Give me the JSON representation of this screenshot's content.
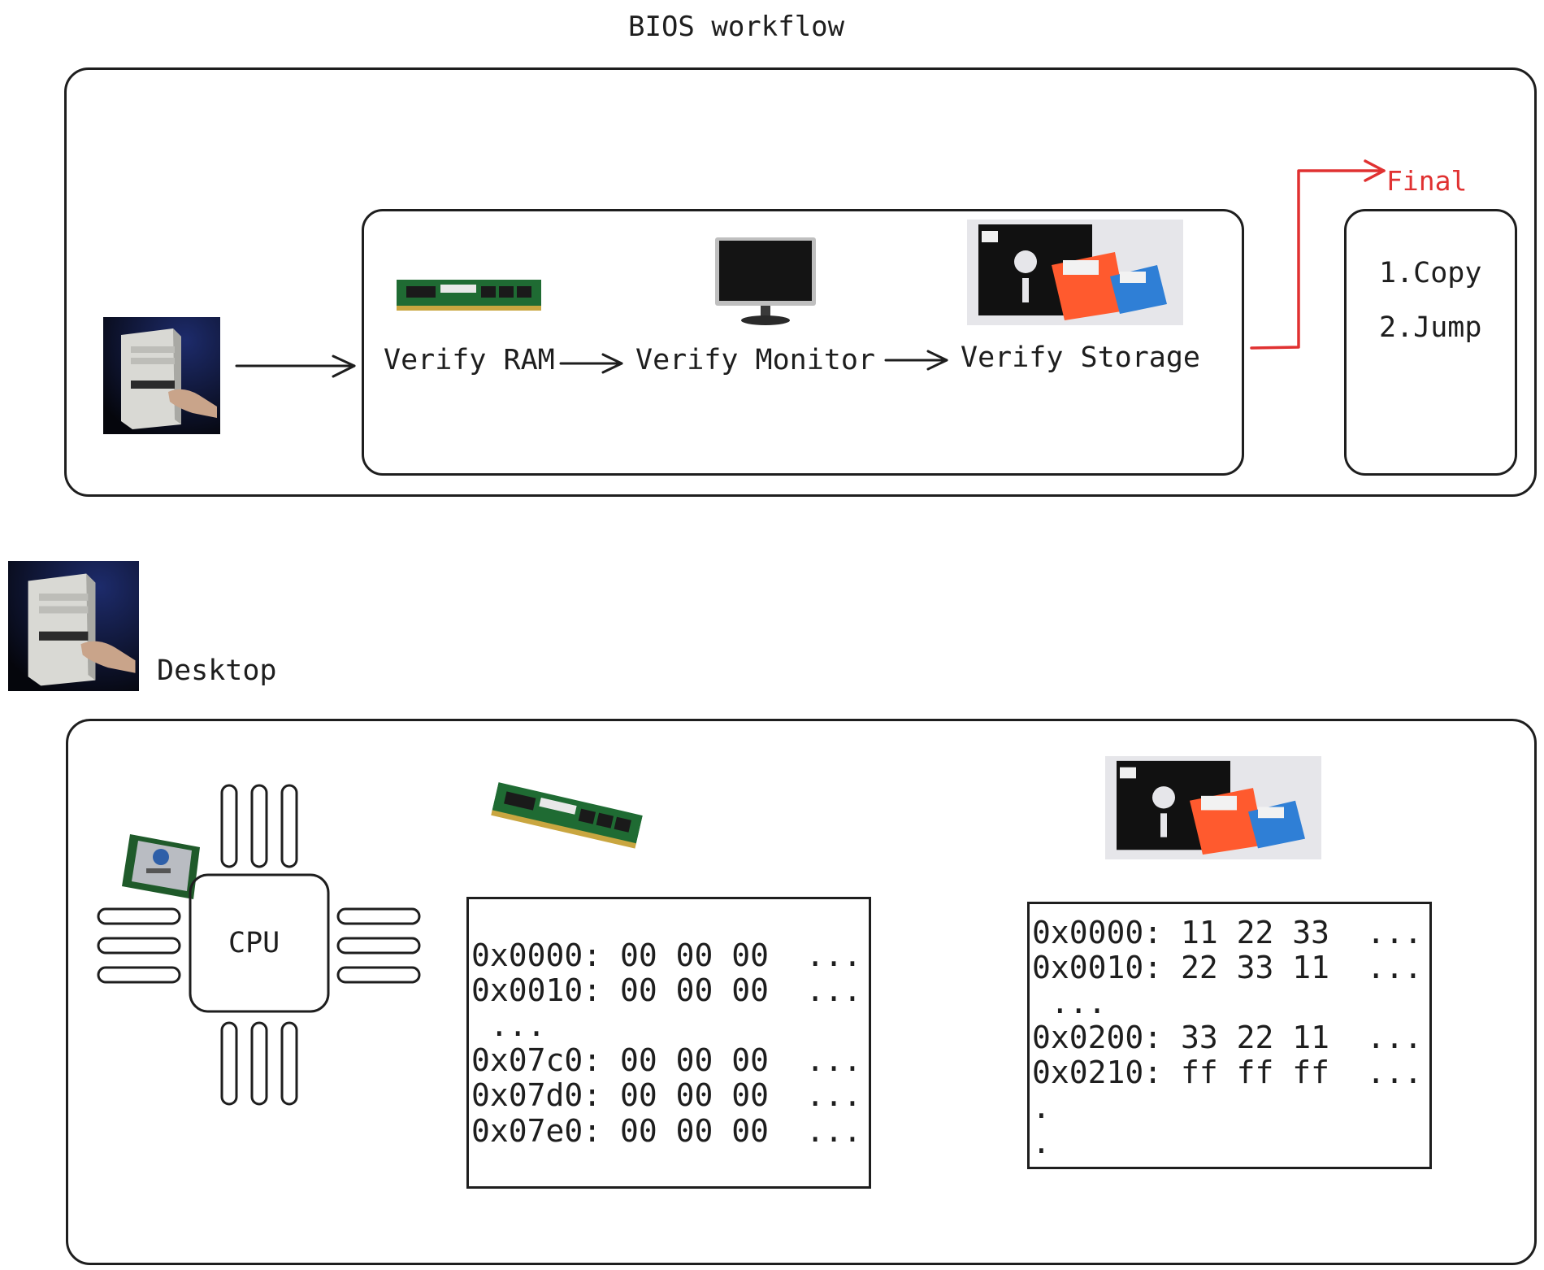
{
  "title": "BIOS workflow",
  "workflow": {
    "steps": [
      "Verify RAM",
      "Verify Monitor",
      "Verify Storage"
    ],
    "final_label": "Final",
    "final_items": [
      "1.Copy",
      "2.Jump"
    ]
  },
  "desktop": {
    "label": "Desktop",
    "cpu_label": "CPU",
    "ram_dump": [
      "0x0000: 00 00 00  ...",
      "0x0010: 00 00 00  ...",
      " ...",
      "0x07c0: 00 00 00  ...",
      "0x07d0: 00 00 00  ...",
      "0x07e0: 00 00 00  ..."
    ],
    "storage_dump": [
      "0x0000: 11 22 33  ...",
      "0x0010: 22 33 11  ...",
      " ...",
      "0x0200: 33 22 11  ...",
      "0x0210: ff ff ff  ...",
      ".",
      "."
    ]
  },
  "colors": {
    "stroke": "#1e1e1e",
    "accent_red": "#e03131"
  },
  "icons": [
    "computer-tower-photo",
    "ram-module-photo",
    "monitor-photo",
    "floppy-disks-photo",
    "intel-cpu-chip-photo"
  ]
}
